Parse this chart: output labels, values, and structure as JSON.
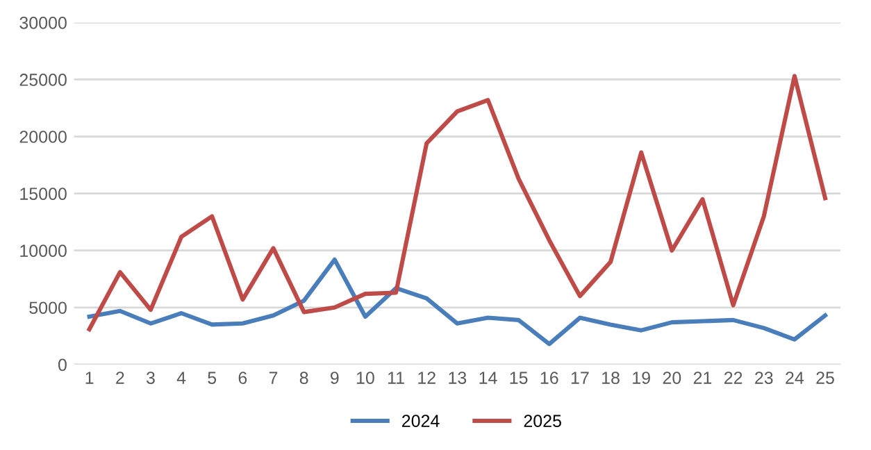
{
  "chart_data": {
    "type": "line",
    "categories": [
      "1",
      "2",
      "3",
      "4",
      "5",
      "6",
      "7",
      "8",
      "9",
      "10",
      "11",
      "12",
      "13",
      "14",
      "15",
      "16",
      "17",
      "18",
      "19",
      "20",
      "21",
      "22",
      "23",
      "24",
      "25"
    ],
    "series": [
      {
        "name": "2024",
        "color": "#4a7ebb",
        "values": [
          4200,
          4700,
          3600,
          4500,
          3500,
          3600,
          4300,
          5600,
          9200,
          4200,
          6700,
          5800,
          3600,
          4100,
          3900,
          1800,
          4100,
          3500,
          3000,
          3700,
          3800,
          3900,
          3200,
          2200,
          4300
        ]
      },
      {
        "name": "2025",
        "color": "#be4b48",
        "values": [
          3100,
          8100,
          4800,
          11200,
          13000,
          5700,
          10200,
          4600,
          5000,
          6200,
          6300,
          19400,
          22200,
          23200,
          16300,
          10900,
          6000,
          9000,
          18600,
          10000,
          14500,
          5200,
          13000,
          25300,
          14600
        ]
      }
    ],
    "ylim": [
      0,
      30000
    ],
    "yticks": [
      0,
      5000,
      10000,
      15000,
      20000,
      25000,
      30000
    ],
    "grid": "y",
    "legend": "bottom",
    "marker": "none",
    "line_style": "solid"
  }
}
